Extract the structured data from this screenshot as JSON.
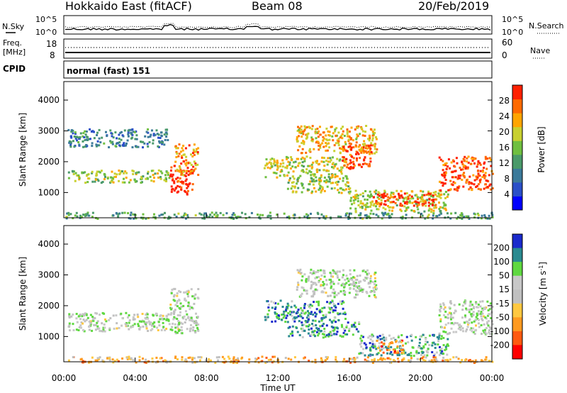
{
  "header": {
    "title": "Hokkaido East (fitACF)",
    "beam": "Beam 08",
    "date": "20/Feb/2019"
  },
  "noise_panel": {
    "left_label": "N.Sky",
    "right_label": "N.Search",
    "y_ticks": [
      "10^5",
      "10^0"
    ]
  },
  "freq_panel": {
    "left_label_1": "Freq.",
    "left_label_2": "[MHz]",
    "y_ticks_left": [
      "18",
      "8"
    ],
    "y_ticks_right": [
      "60",
      "0"
    ],
    "right_label": "Nave"
  },
  "cpid_panel": {
    "left_label": "CPID",
    "mode_text": "normal (fast) 151"
  },
  "colors": {
    "power": [
      "#0000ff",
      "#2a4fc8",
      "#3b7a9a",
      "#4a9a6a",
      "#6fbf40",
      "#c8d030",
      "#ffa500",
      "#ff6a00",
      "#ff2000"
    ],
    "velocity": [
      "#1a2acc",
      "#2a8a90",
      "#5fd840",
      "#c8c8c8",
      "#c0c0c0",
      "#ffc840",
      "#ff9a20",
      "#ff5a10",
      "#ff0000"
    ]
  },
  "chart_data": [
    {
      "type": "heatmap",
      "name": "power",
      "ylabel": "Slant Range [km]",
      "y_ticks": [
        1000,
        2000,
        3000,
        4000
      ],
      "ylim": [
        180,
        4600
      ],
      "colorbar_label": "Power [dB]",
      "colorbar_ticks": [
        4,
        8,
        12,
        16,
        20,
        24,
        28
      ],
      "colorbar_range": [
        0,
        32
      ],
      "regions": [
        {
          "t0": 0.2,
          "t1": 5.9,
          "r0": 1350,
          "r1": 1750,
          "level": 0.55
        },
        {
          "t0": 0.2,
          "t1": 5.9,
          "r0": 2500,
          "r1": 3100,
          "level": 0.3
        },
        {
          "t0": 5.9,
          "t1": 7.2,
          "r0": 950,
          "r1": 1900,
          "level": 0.95
        },
        {
          "t0": 6.2,
          "t1": 7.5,
          "r0": 1600,
          "r1": 2600,
          "level": 0.75
        },
        {
          "t0": 11.2,
          "t1": 15.8,
          "r0": 1500,
          "r1": 2200,
          "level": 0.6
        },
        {
          "t0": 12.5,
          "t1": 16.0,
          "r0": 1000,
          "r1": 1500,
          "level": 0.55
        },
        {
          "t0": 13.0,
          "t1": 17.5,
          "r0": 2300,
          "r1": 3200,
          "level": 0.7
        },
        {
          "t0": 15.5,
          "t1": 17.2,
          "r0": 1800,
          "r1": 2600,
          "level": 0.9
        },
        {
          "t0": 16.0,
          "t1": 21.5,
          "r0": 400,
          "r1": 1100,
          "level": 0.6
        },
        {
          "t0": 17.3,
          "t1": 20.8,
          "r0": 600,
          "r1": 1000,
          "level": 0.95
        },
        {
          "t0": 21.0,
          "t1": 24.0,
          "r0": 1100,
          "r1": 2200,
          "level": 0.9
        },
        {
          "t0": 0.0,
          "t1": 24.0,
          "r0": 180,
          "r1": 380,
          "level": 0.4
        }
      ]
    },
    {
      "type": "heatmap",
      "name": "velocity",
      "ylabel": "Slant Range [km]",
      "xlabel": "Time UT",
      "y_ticks": [
        1000,
        2000,
        3000,
        4000
      ],
      "ylim": [
        180,
        4600
      ],
      "x_ticks": [
        "00:00",
        "04:00",
        "08:00",
        "12:00",
        "16:00",
        "20:00",
        "00:00"
      ],
      "colorbar_label": "Velocity [m s",
      "colorbar_label_sup": "-1",
      "colorbar_label_end": "]",
      "colorbar_ticks": [
        "200",
        "100",
        "50",
        "15",
        "-15",
        "-50",
        "-100",
        "-200"
      ],
      "regions": [
        {
          "t0": 0.2,
          "t1": 5.9,
          "r0": 1200,
          "r1": 1800,
          "level": 0.4
        },
        {
          "t0": 5.9,
          "t1": 7.5,
          "r0": 1100,
          "r1": 2600,
          "level": 0.4
        },
        {
          "t0": 11.2,
          "t1": 15.8,
          "r0": 1500,
          "r1": 2200,
          "level": 0.2
        },
        {
          "t0": 12.5,
          "t1": 16.5,
          "r0": 1000,
          "r1": 1500,
          "level": 0.2
        },
        {
          "t0": 13.0,
          "t1": 17.5,
          "r0": 2300,
          "r1": 3200,
          "level": 0.4
        },
        {
          "t0": 16.5,
          "t1": 21.5,
          "r0": 400,
          "r1": 1100,
          "level": 0.25
        },
        {
          "t0": 17.5,
          "t1": 19.0,
          "r0": 500,
          "r1": 900,
          "level": 0.75
        },
        {
          "t0": 21.0,
          "t1": 24.0,
          "r0": 1100,
          "r1": 2200,
          "level": 0.4
        },
        {
          "t0": 0.0,
          "t1": 24.0,
          "r0": 180,
          "r1": 380,
          "level": 0.65
        }
      ]
    }
  ]
}
